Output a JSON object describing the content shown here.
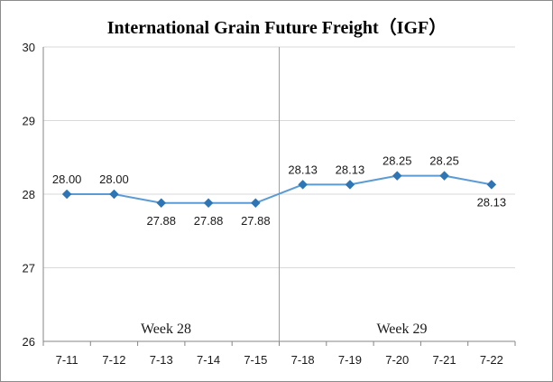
{
  "chart_data": {
    "type": "line",
    "title": "International Grain Future Freight（IGF）",
    "xlabel": "",
    "ylabel": "",
    "categories": [
      "7-11",
      "7-12",
      "7-13",
      "7-14",
      "7-15",
      "7-18",
      "7-19",
      "7-20",
      "7-21",
      "7-22"
    ],
    "series": [
      {
        "values": [
          28.0,
          28.0,
          27.88,
          27.88,
          27.88,
          28.13,
          28.13,
          28.25,
          28.25,
          28.13
        ],
        "data_labels": [
          "28.00",
          "28.00",
          "27.88",
          "27.88",
          "27.88",
          "28.13",
          "28.13",
          "28.25",
          "28.25",
          "28.13"
        ],
        "label_positions": [
          "above",
          "above",
          "below",
          "below",
          "below",
          "above",
          "above",
          "above",
          "above",
          "below"
        ]
      }
    ],
    "ylim": [
      26,
      30
    ],
    "yticks": [
      "26",
      "27",
      "28",
      "29",
      "30"
    ],
    "grid": true,
    "annotations": [
      {
        "text": "Week 28"
      },
      {
        "text": "Week 29"
      }
    ],
    "colors": {
      "line": "#5b9bd5",
      "marker": "#2e75b6",
      "grid": "#d9d9d9",
      "axis": "#868686",
      "divider": "#7fa7c9"
    }
  }
}
